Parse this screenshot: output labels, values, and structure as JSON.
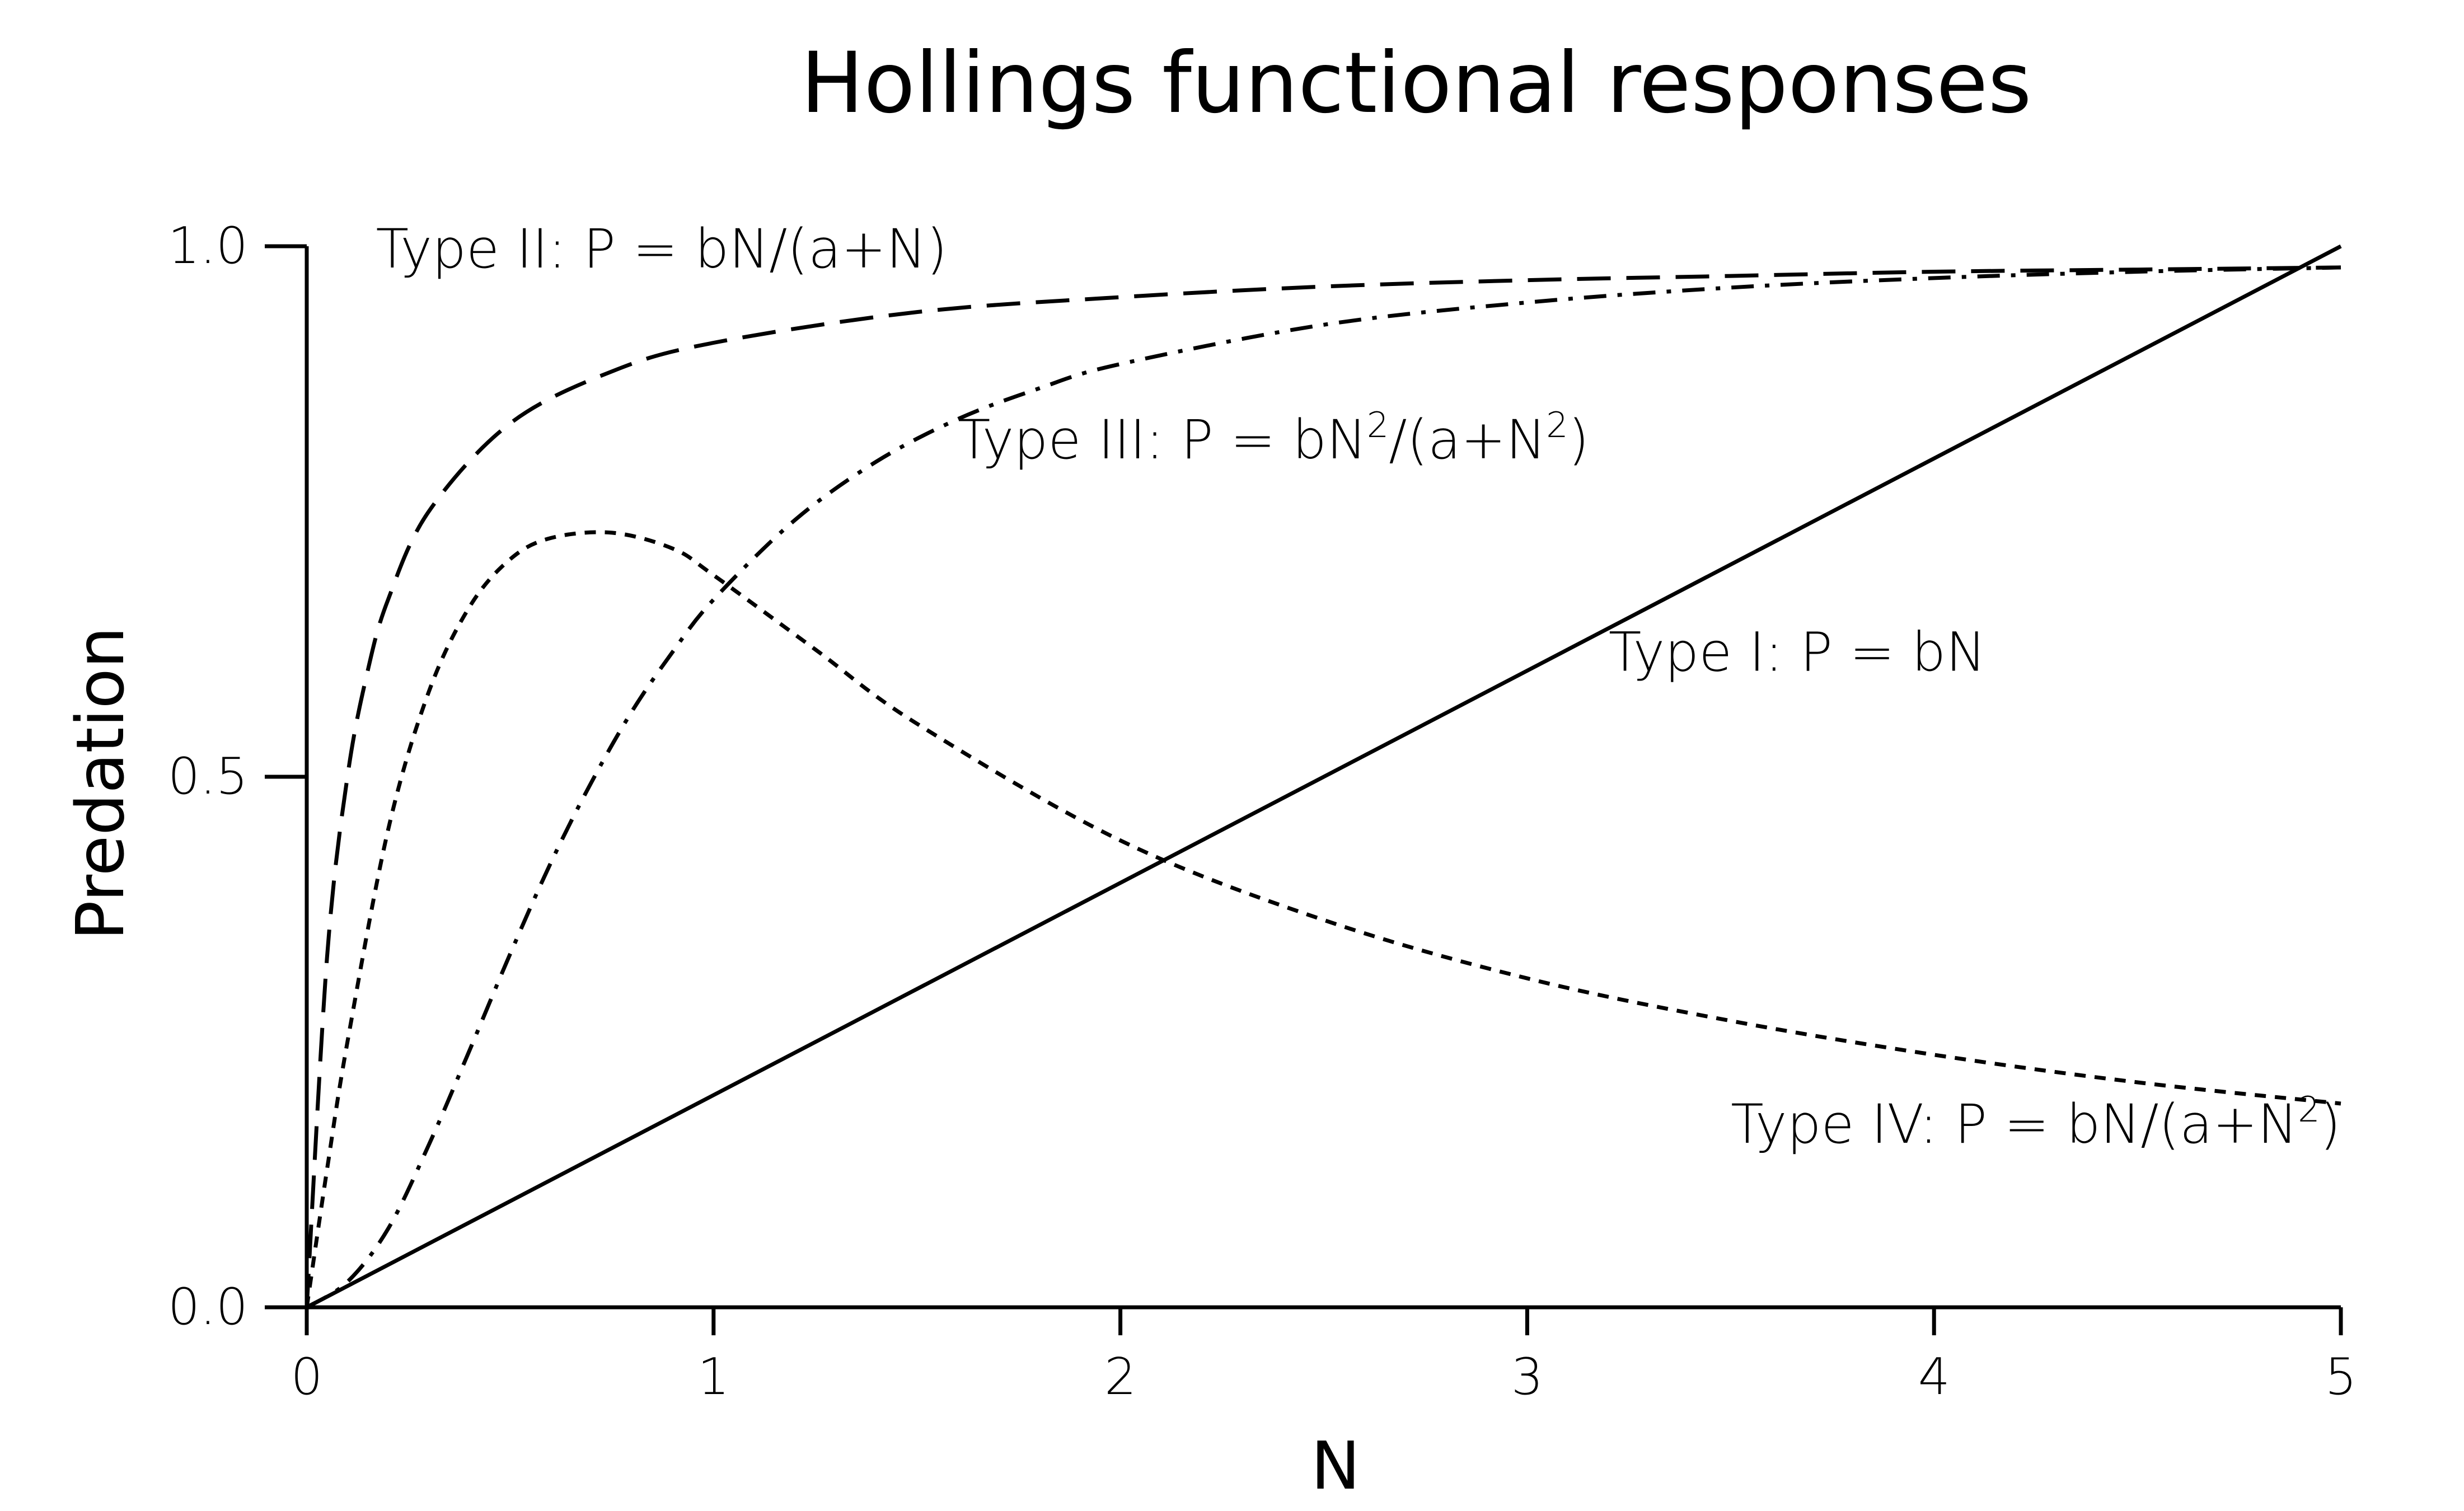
{
  "chart_data": {
    "type": "line",
    "title": "Hollings functional responses",
    "xlabel": "N",
    "ylabel": "Predation",
    "xlim": [
      0,
      5
    ],
    "ylim": [
      0,
      1
    ],
    "x_ticks": [
      0,
      1,
      2,
      3,
      4,
      5
    ],
    "x_tick_labels": [
      "0",
      "1",
      "2",
      "3",
      "4",
      "5"
    ],
    "y_ticks": [
      0,
      0.5,
      1
    ],
    "y_tick_labels": [
      "0.0",
      "0.5",
      "1.0"
    ],
    "grid": false,
    "legend": "none",
    "line_color": "#000000",
    "series": [
      {
        "name": "Type I: P = bN",
        "style": "solid",
        "x": [
          0,
          5
        ],
        "y": [
          0,
          1.0
        ]
      },
      {
        "name": "Type II: P = bN/(a+N)",
        "style": "dashed",
        "x": [
          0,
          0.05,
          0.1,
          0.15,
          0.2,
          0.3,
          0.5,
          0.75,
          1.0,
          1.5,
          2.0,
          2.5,
          3.0,
          3.5,
          4.0,
          4.5,
          5.0
        ],
        "y": [
          0,
          0.33,
          0.5,
          0.6,
          0.667,
          0.75,
          0.833,
          0.882,
          0.909,
          0.938,
          0.952,
          0.962,
          0.968,
          0.972,
          0.976,
          0.978,
          0.98
        ]
      },
      {
        "name": "Type III: P = bN²/(a+N²)",
        "style": "dashdot",
        "x": [
          0,
          0.1,
          0.2,
          0.3,
          0.4,
          0.5,
          0.6,
          0.7,
          0.8,
          0.9,
          1.0,
          1.2,
          1.4,
          1.6,
          1.8,
          2.0,
          2.5,
          3.0,
          3.5,
          4.0,
          4.5,
          5.0
        ],
        "y": [
          0,
          0.024,
          0.074,
          0.153,
          0.242,
          0.333,
          0.419,
          0.495,
          0.562,
          0.618,
          0.667,
          0.742,
          0.797,
          0.837,
          0.866,
          0.889,
          0.926,
          0.947,
          0.961,
          0.97,
          0.976,
          0.98
        ]
      },
      {
        "name": "Type IV: P = bN/(a+N²)",
        "style": "dotted",
        "x": [
          0,
          0.05,
          0.1,
          0.2,
          0.3,
          0.4,
          0.5,
          0.6,
          0.75,
          0.9,
          1.0,
          1.25,
          1.5,
          2.0,
          2.5,
          3.0,
          3.5,
          4.0,
          4.5,
          5.0
        ],
        "y": [
          0,
          0.13,
          0.25,
          0.45,
          0.58,
          0.66,
          0.705,
          0.725,
          0.73,
          0.715,
          0.69,
          0.62,
          0.55,
          0.44,
          0.365,
          0.31,
          0.27,
          0.238,
          0.212,
          0.192
        ]
      }
    ],
    "annotations": [
      {
        "series_index": 1,
        "text": "Type II: P = bN/(a+N)",
        "x": 0.17,
        "y": 0.98,
        "anchor": "start"
      },
      {
        "series_index": 2,
        "text_parts": [
          "Type III: P = bN",
          "2",
          "/(a+N",
          "2",
          ")"
        ],
        "x": 1.6,
        "y": 0.8,
        "anchor": "start"
      },
      {
        "series_index": 0,
        "text": "Type I: P = bN",
        "x": 3.2,
        "y": 0.6,
        "anchor": "start"
      },
      {
        "series_index": 3,
        "text_parts": [
          "Type IV: P = bN/(a+N",
          "2",
          ")"
        ],
        "x": 5.0,
        "y": 0.155,
        "anchor": "end"
      }
    ]
  }
}
